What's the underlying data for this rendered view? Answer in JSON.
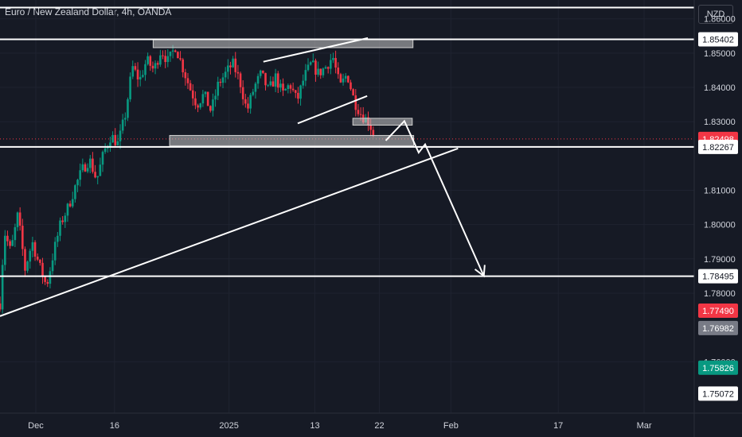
{
  "header": {
    "title": "Euro / New Zealand Dollar, 4h, OANDA",
    "currency": "NZD"
  },
  "chart_data": {
    "type": "candlestick",
    "y_ticks": [
      1.86,
      1.85,
      1.84,
      1.83,
      1.81,
      1.8,
      1.79,
      1.78,
      1.76
    ],
    "y_tick_labels": [
      "1.86000",
      "1.85000",
      "1.84000",
      "1.83000",
      "1.81000",
      "1.80000",
      "1.79000",
      "1.78000",
      "1.76000"
    ],
    "ylim": [
      1.745,
      1.8655
    ],
    "x_labels": [
      {
        "label": "Dec",
        "day": 5
      },
      {
        "label": "16",
        "day": 16
      },
      {
        "label": "2025",
        "day": 32
      },
      {
        "label": "13",
        "day": 44
      },
      {
        "label": "22",
        "day": 53
      },
      {
        "label": "Feb",
        "day": 63
      },
      {
        "label": "17",
        "day": 78
      },
      {
        "label": "Mar",
        "day": 90
      }
    ],
    "xlim": [
      0,
      97
    ],
    "price_tags": [
      {
        "label": "1.85402",
        "value": 1.85402,
        "bg": "#ffffff",
        "fg": "#131722"
      },
      {
        "label": "1.82498",
        "value": 1.82498,
        "bg": "#f23645",
        "fg": "#ffffff"
      },
      {
        "label": "1.82267",
        "value": 1.82267,
        "bg": "#ffffff",
        "fg": "#131722"
      },
      {
        "label": "1.78495",
        "value": 1.78495,
        "bg": "#ffffff",
        "fg": "#131722"
      },
      {
        "label": "1.77490",
        "value": 1.7749,
        "bg": "#f23645",
        "fg": "#ffffff"
      },
      {
        "label": "1.76982",
        "value": 1.76982,
        "bg": "#787b86",
        "fg": "#ffffff"
      },
      {
        "label": "1.75826",
        "value": 1.75826,
        "bg": "#089981",
        "fg": "#ffffff"
      },
      {
        "label": "1.75072",
        "value": 1.75072,
        "bg": "#ffffff",
        "fg": "#131722"
      }
    ],
    "last_price": 1.82498,
    "colors": {
      "up": "#089981",
      "down": "#f23645",
      "background": "#161a25",
      "grid": "#1f2330",
      "drawing": "#ffffff"
    },
    "horizontal_lines": [
      1.8633,
      1.85402,
      1.82267,
      1.78495
    ],
    "zones": [
      {
        "day_start": 21.4,
        "day_end": 57.7,
        "low": 1.8516,
        "high": 1.854
      },
      {
        "day_start": 23.7,
        "day_end": 57.8,
        "low": 1.823,
        "high": 1.826
      },
      {
        "day_start": 49.3,
        "day_end": 57.6,
        "low": 1.829,
        "high": 1.831
      }
    ],
    "trendlines": [
      {
        "from": [
          0,
          1.7733
        ],
        "to": [
          64,
          1.8222
        ]
      },
      {
        "from": [
          36.8,
          1.8475
        ],
        "to": [
          51.4,
          1.8544
        ]
      },
      {
        "from": [
          41.6,
          1.8295
        ],
        "to": [
          51.3,
          1.8375
        ]
      }
    ],
    "projection": [
      [
        53.9,
        1.8245
      ],
      [
        56.5,
        1.8302
      ],
      [
        58.5,
        1.821
      ],
      [
        59.4,
        1.8234
      ],
      [
        67.6,
        1.785
      ]
    ],
    "price_path": [
      [
        0,
        1.777
      ],
      [
        0.6,
        1.798
      ],
      [
        1.5,
        1.792
      ],
      [
        2.5,
        1.803
      ],
      [
        3.5,
        1.787
      ],
      [
        4.5,
        1.795
      ],
      [
        5.5,
        1.788
      ],
      [
        6.5,
        1.782
      ],
      [
        7.5,
        1.792
      ],
      [
        8.5,
        1.8005
      ],
      [
        9.5,
        1.805
      ],
      [
        10.5,
        1.811
      ],
      [
        11.5,
        1.816
      ],
      [
        12.5,
        1.819
      ],
      [
        13.5,
        1.813
      ],
      [
        14.5,
        1.821
      ],
      [
        15.5,
        1.826
      ],
      [
        16.5,
        1.8235
      ],
      [
        17.5,
        1.832
      ],
      [
        18.5,
        1.846
      ],
      [
        19.5,
        1.842
      ],
      [
        20.5,
        1.848
      ],
      [
        21.5,
        1.845
      ],
      [
        22.5,
        1.851
      ],
      [
        23.5,
        1.8475
      ],
      [
        24.5,
        1.852
      ],
      [
        25.5,
        1.846
      ],
      [
        26.5,
        1.84
      ],
      [
        27.5,
        1.835
      ],
      [
        28.5,
        1.838
      ],
      [
        29.5,
        1.833
      ],
      [
        30.5,
        1.841
      ],
      [
        31.5,
        1.844
      ],
      [
        32.5,
        1.847
      ],
      [
        33.5,
        1.842
      ],
      [
        34.5,
        1.833
      ],
      [
        35.5,
        1.84
      ],
      [
        36.5,
        1.844
      ],
      [
        37.5,
        1.839
      ],
      [
        38.5,
        1.843
      ],
      [
        39.5,
        1.838
      ],
      [
        40.5,
        1.841
      ],
      [
        41.5,
        1.836
      ],
      [
        42.5,
        1.843
      ],
      [
        43.5,
        1.847
      ],
      [
        44.5,
        1.844
      ],
      [
        45.5,
        1.846
      ],
      [
        46.5,
        1.849
      ],
      [
        47.5,
        1.84
      ],
      [
        48.5,
        1.844
      ],
      [
        49.5,
        1.836
      ],
      [
        50.5,
        1.832
      ],
      [
        51.5,
        1.83
      ],
      [
        52.5,
        1.825
      ]
    ]
  }
}
